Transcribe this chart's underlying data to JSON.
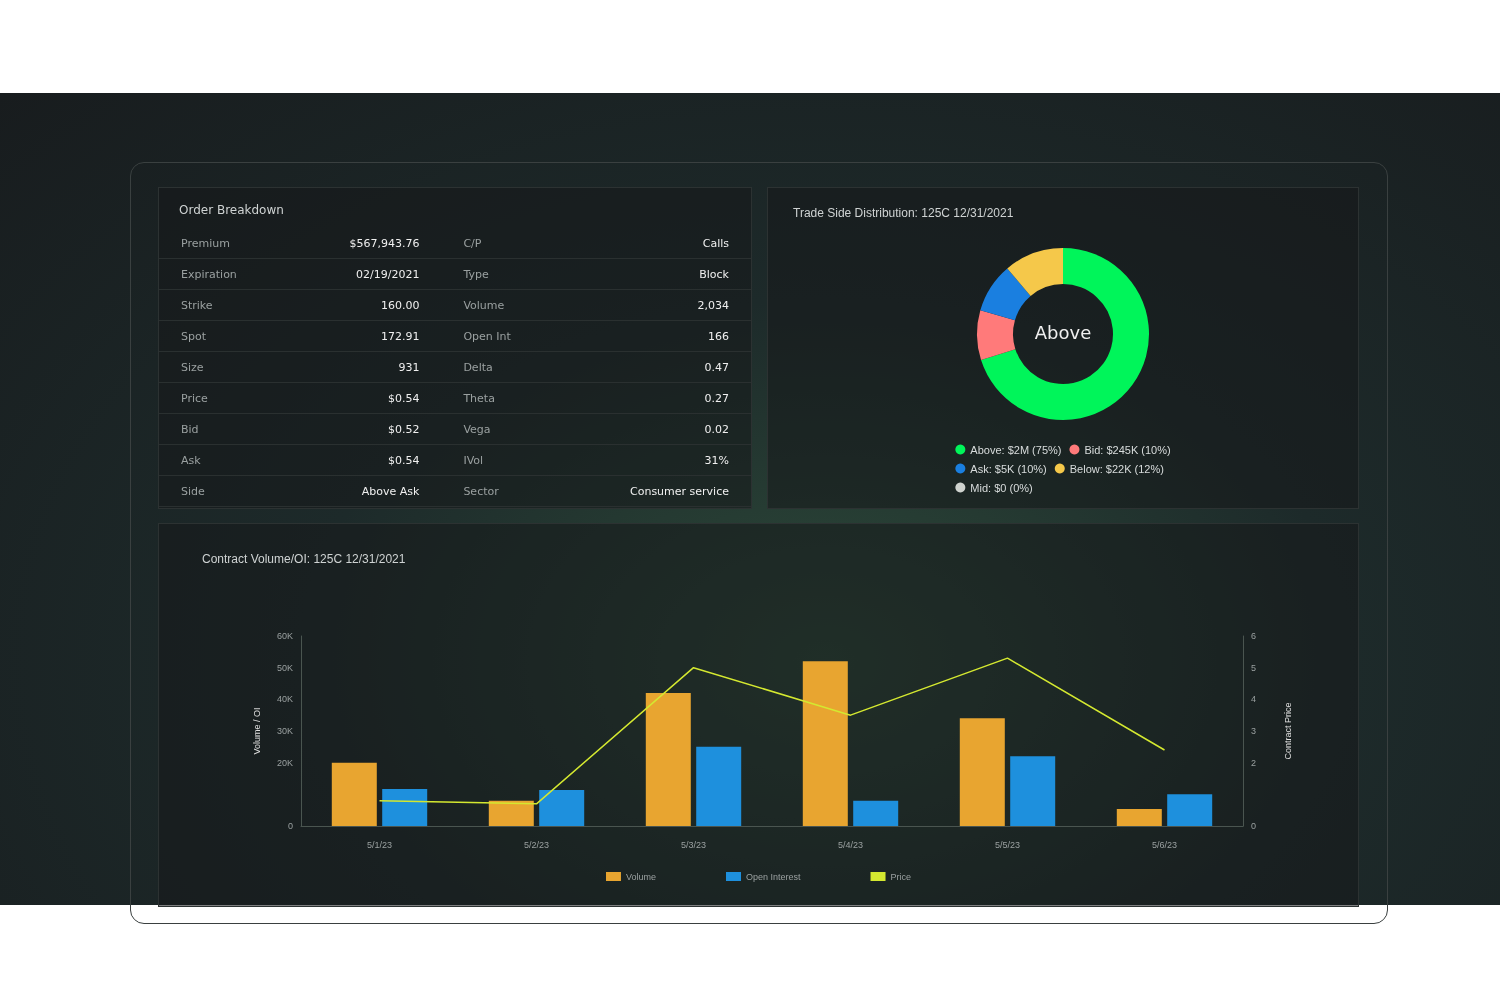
{
  "chart_data": [
    {
      "type": "other",
      "title": "Order Breakdown",
      "annotations": [
        "Premium",
        "$567,943.76",
        "C/P",
        "Calls",
        "Expiration",
        "02/19/2021",
        "Type",
        "Block",
        "Strike",
        "160.00",
        "Volume",
        "2,034",
        "Spot",
        "172.91",
        "Open Int",
        "166",
        "Size",
        "931",
        "Delta",
        "0.47",
        "Price",
        "$0.54",
        "Theta",
        "0.27",
        "Bid",
        "$0.52",
        "Vega",
        "0.02",
        "Ask",
        "$0.54",
        "IVol",
        "31%",
        "Side",
        "Above Ask",
        "Sector",
        "Consumer service"
      ]
    },
    {
      "type": "donut",
      "title": "Trade Side Distribution: 125C 12/31/2021",
      "categories": [
        "Above: $2M (75%)",
        "Bid: $245K (10%)",
        "Ask: $5K (10%)",
        "Below: $22K (12%)",
        "Mid: $0 (0%)"
      ],
      "values": [
        75,
        10,
        10,
        12,
        0
      ],
      "colors": [
        "#00f55a",
        "#ff7a7a",
        "#1a7fe0",
        "#f5c84a",
        "#cfd3cf"
      ],
      "annotations": [
        "Above"
      ],
      "legend": "bottom"
    },
    {
      "type": "bar",
      "title": "Contract Volume/OI: 125C 12/31/2021",
      "ylabel": "Volume / OI",
      "y2label": "Contract Price",
      "categories": [
        "5/1/23",
        "5/2/23",
        "5/3/23",
        "5/4/23",
        "5/5/23",
        "5/6/23"
      ],
      "series": [
        {
          "name": "Volume",
          "color": "#e8a530",
          "values": [
            20000,
            8000,
            42000,
            52000,
            34000,
            5400
          ]
        },
        {
          "name": "Open Interest",
          "color": "#1e90dd",
          "values": [
            11700,
            11400,
            25000,
            8000,
            22000,
            10000
          ]
        },
        {
          "name": "Price",
          "type": "line",
          "axis": "y2",
          "color": "#d4e830",
          "values": [
            0.8,
            0.7,
            5.0,
            3.5,
            5.3,
            2.4
          ]
        }
      ],
      "ylim": [
        0,
        60000
      ],
      "yticks": [
        {
          "value": 0,
          "label": "0"
        },
        {
          "value": 20000,
          "label": "20K"
        },
        {
          "value": 30000,
          "label": "30K"
        },
        {
          "value": 40000,
          "label": "40K"
        },
        {
          "value": 50000,
          "label": "50K"
        },
        {
          "value": 60000,
          "label": "60K"
        }
      ],
      "y2lim": [
        0,
        6
      ],
      "y2ticks": [
        0,
        2,
        3,
        4,
        5,
        6
      ],
      "grid": false,
      "legend": "bottom",
      "marker": "none"
    }
  ]
}
